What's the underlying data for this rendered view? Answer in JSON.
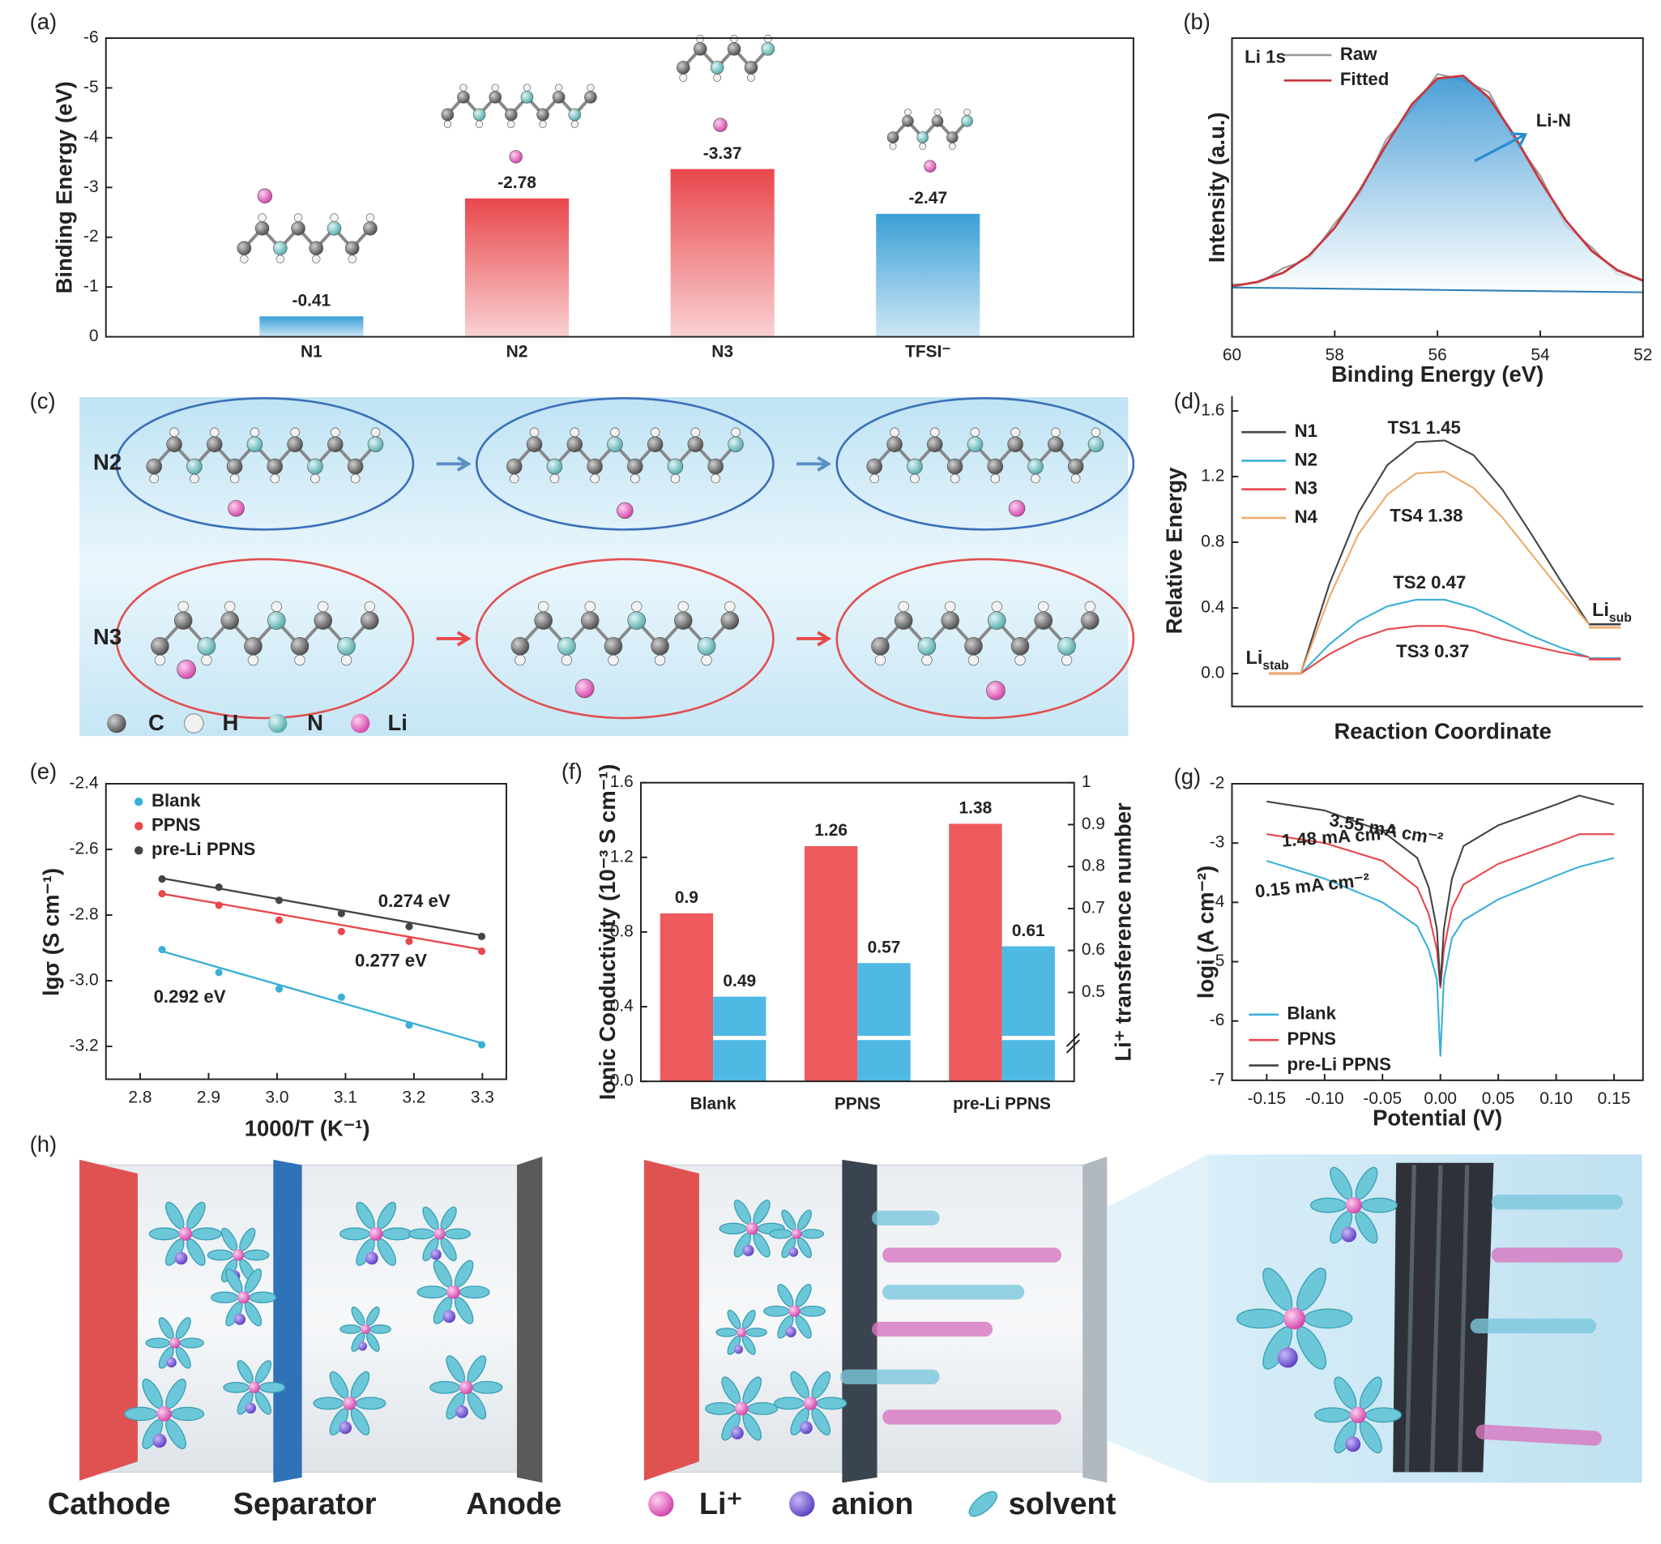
{
  "chart_data": [
    {
      "type": "bar",
      "label": "(a)",
      "ylabel": "Binding Energy (eV)",
      "categories": [
        "N1",
        "N2",
        "N3",
        "TFSI⁻"
      ],
      "values": [
        -0.41,
        -2.78,
        -3.37,
        -2.47
      ],
      "colors": [
        "#3a9fd6",
        "#e8474c",
        "#e8474c",
        "#3a9fd6"
      ],
      "ylim": [
        0,
        -6
      ],
      "yticks": [
        0,
        -1,
        -2,
        -3,
        -4,
        -5,
        -6
      ]
    },
    {
      "type": "line",
      "label": "(b)",
      "xlabel": "Binding Energy (eV)",
      "ylabel": "Intensity (a.u.)",
      "annotations": [
        "Li 1s",
        "Li-N"
      ],
      "x": [
        60,
        59.5,
        59,
        58.5,
        58,
        57.5,
        57,
        56.5,
        56,
        55.5,
        55,
        54.5,
        54,
        53.5,
        53,
        52.5,
        52
      ],
      "series": [
        {
          "name": "Raw",
          "color": "#9a9a9a",
          "values": [
            0.175,
            0.178,
            0.23,
            0.26,
            0.38,
            0.48,
            0.66,
            0.76,
            0.88,
            0.86,
            0.82,
            0.66,
            0.54,
            0.37,
            0.3,
            0.21,
            0.19
          ]
        },
        {
          "name": "Fitted",
          "color": "#c8373d",
          "area": true,
          "values": [
            0.169,
            0.184,
            0.215,
            0.272,
            0.365,
            0.494,
            0.642,
            0.778,
            0.865,
            0.874,
            0.801,
            0.672,
            0.523,
            0.389,
            0.288,
            0.223,
            0.188
          ]
        },
        {
          "color": "#2f7fb8",
          "values": [
            0.165,
            0.164,
            0.163,
            0.162,
            0.161,
            0.16,
            0.159,
            0.158,
            0.157,
            0.156,
            0.155,
            0.154,
            0.153,
            0.152,
            0.151,
            0.15,
            0.149
          ]
        }
      ],
      "xlim": [
        60,
        52
      ],
      "xticks": [
        60,
        58,
        56,
        54,
        52
      ],
      "ylim": [
        0,
        1
      ]
    },
    {
      "type": "line",
      "label": "(d)",
      "xlabel": "Reaction Coordinate",
      "ylabel": "Relative Energy",
      "series": [
        {
          "name": "N1",
          "color": "#444444",
          "values": [
            0,
            0.55,
            0.98,
            1.27,
            1.41,
            1.42,
            1.33,
            1.12,
            0.85,
            0.57,
            0.3
          ]
        },
        {
          "name": "N2",
          "color": "#3ab0d8",
          "values": [
            0,
            0.18,
            0.32,
            0.41,
            0.45,
            0.45,
            0.4,
            0.32,
            0.23,
            0.16,
            0.1
          ]
        },
        {
          "name": "N3",
          "color": "#e8474c",
          "values": [
            0,
            0.12,
            0.21,
            0.27,
            0.29,
            0.29,
            0.26,
            0.21,
            0.17,
            0.13,
            0.1
          ]
        },
        {
          "name": "N4",
          "color": "#f0a868",
          "values": [
            0,
            0.47,
            0.85,
            1.09,
            1.22,
            1.23,
            1.13,
            0.95,
            0.73,
            0.51,
            0.3
          ]
        }
      ],
      "annotations": [
        "TS1 1.45",
        "TS4 1.38",
        "TS2 0.47",
        "TS3 0.37"
      ],
      "start_label": {
        "base": "Li",
        "sub": "stab"
      },
      "end_label": {
        "base": "Li",
        "sub": "sub"
      },
      "ylim": [
        -0.2,
        1.6
      ],
      "yticks": [
        {
          "value": 0,
          "label": "0.0"
        },
        0.4,
        0.8,
        1.2,
        1.6
      ]
    },
    {
      "type": "scatter",
      "label": "(e)",
      "xlabel": "1000/T (K⁻¹)",
      "ylabel": "lgσ (S cm⁻¹)",
      "x": [
        2.832,
        2.915,
        3.003,
        3.094,
        3.193,
        3.299
      ],
      "series": [
        {
          "name": "Blank",
          "color": "#3ab0d8",
          "values": [
            -2.905,
            -2.975,
            -3.025,
            -3.05,
            -3.135,
            -3.195
          ],
          "fit_values": [
            -2.91,
            -3.19
          ]
        },
        {
          "name": "PPNS",
          "color": "#e8474c",
          "values": [
            -2.735,
            -2.77,
            -2.815,
            -2.85,
            -2.88,
            -2.91
          ],
          "fit_values": [
            -2.735,
            -2.905
          ]
        },
        {
          "name": "pre-Li PPNS",
          "color": "#444444",
          "values": [
            -2.69,
            -2.715,
            -2.755,
            -2.795,
            -2.835,
            -2.865
          ],
          "fit_values": [
            -2.688,
            -2.862
          ]
        }
      ],
      "annotations": [
        "0.274 eV",
        "0.277 eV",
        "0.292 eV"
      ],
      "xlim": [
        2.75,
        3.335
      ],
      "xticks": [
        2.8,
        2.9,
        {
          "value": 3,
          "label": "3.0"
        },
        3.1,
        3.2,
        3.3
      ],
      "ylim": [
        -3.3,
        -2.4
      ],
      "yticks": [
        -2.4,
        -2.6,
        -2.8,
        {
          "value": -3,
          "label": "-3.0"
        },
        -3.2
      ]
    },
    {
      "type": "bar",
      "label": "(f)",
      "ylabel": "Ionic Conductivity (10⁻³ S cm⁻¹)",
      "y2label": "Li⁺ transference number",
      "categories": [
        "Blank",
        "PPNS",
        "pre-Li PPNS"
      ],
      "series": [
        {
          "color": "#ec5a5e",
          "values": [
            0.9,
            1.26,
            1.38
          ]
        },
        {
          "color": "#4fb9e3",
          "axis": "y2",
          "values": [
            0.49,
            0.57,
            0.61
          ]
        }
      ],
      "ylim": [
        0,
        1.6
      ],
      "yticks": [
        {
          "value": 0,
          "label": "0.0"
        },
        0.4,
        0.8,
        1.2,
        1.6
      ],
      "y2lim": [
        0.288,
        1
      ],
      "y2ticks": [
        0.5,
        0.6,
        0.7,
        0.8,
        0.9,
        1
      ]
    },
    {
      "type": "line",
      "label": "(g)",
      "xlabel": "Potential (V)",
      "ylabel": "logi (A cm⁻²)",
      "x": [
        -0.15,
        -0.1,
        -0.05,
        -0.02,
        -0.01,
        -0.003,
        0,
        0.003,
        0.01,
        0.02,
        0.05,
        0.1,
        0.12,
        0.15
      ],
      "series": [
        {
          "name": "Blank",
          "color": "#3ab0d8",
          "values": [
            -3.3,
            -3.6,
            -4.0,
            -4.4,
            -4.8,
            -5.3,
            -6.6,
            -5.3,
            -4.6,
            -4.3,
            -3.95,
            -3.55,
            -3.4,
            -3.25
          ]
        },
        {
          "name": "PPNS",
          "color": "#e8474c",
          "values": [
            -2.85,
            -3.0,
            -3.3,
            -3.75,
            -4.2,
            -4.8,
            -5.45,
            -4.8,
            -4.1,
            -3.7,
            -3.35,
            -3.0,
            -2.85,
            -2.85
          ]
        },
        {
          "name": "pre-Li PPNS",
          "color": "#444444",
          "values": [
            -2.3,
            -2.45,
            -2.8,
            -3.25,
            -3.75,
            -4.45,
            -5.4,
            -4.45,
            -3.6,
            -3.05,
            -2.7,
            -2.35,
            -2.2,
            -2.35
          ]
        }
      ],
      "annotations": [
        "3.55 mA cm⁻²",
        "1.48 mA cm⁻²",
        "0.15 mA cm⁻²"
      ],
      "xlim": [
        -0.18,
        0.175
      ],
      "xticks": [
        -0.15,
        {
          "value": -0.1,
          "label": "-0.10"
        },
        -0.05,
        {
          "value": 0,
          "label": "0.00"
        },
        0.05,
        {
          "value": 0.1,
          "label": "0.10"
        },
        0.15
      ],
      "ylim": [
        -7,
        -2
      ],
      "yticks": [
        -2,
        -3,
        -4,
        -5,
        -6,
        -7
      ]
    }
  ],
  "panel_c": {
    "label": "(c)",
    "rows": [
      "N2",
      "N3"
    ],
    "legend": [
      "C",
      "H",
      "N",
      "Li"
    ]
  },
  "panel_h": {
    "label": "(h)",
    "parts": [
      "Cathode",
      "Separator",
      "Anode"
    ],
    "legend": [
      "Li⁺",
      "anion",
      "solvent"
    ]
  }
}
